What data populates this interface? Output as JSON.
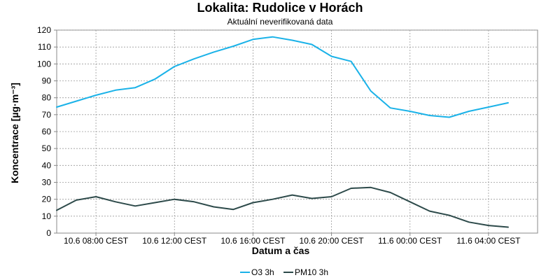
{
  "chart_data": {
    "type": "line",
    "title": "Lokalita: Rudolice v Horách",
    "subtitle": "Aktuální neverifikovaná data",
    "xlabel": "Datum a čas",
    "ylabel": "Koncentrace [µg·m⁻³]",
    "ylim": [
      0,
      120
    ],
    "yticks": [
      0,
      10,
      20,
      30,
      40,
      50,
      60,
      70,
      80,
      90,
      100,
      110,
      120
    ],
    "xlim": [
      "2024-06-10 06:00",
      "2024-06-11 06:30"
    ],
    "xticks": [
      {
        "label": "10.6 08:00 CEST",
        "hour": 8
      },
      {
        "label": "10.6 12:00 CEST",
        "hour": 12
      },
      {
        "label": "10.6 16:00 CEST",
        "hour": 16
      },
      {
        "label": "10.6 20:00 CEST",
        "hour": 20
      },
      {
        "label": "11.6 00:00 CEST",
        "hour": 24
      },
      {
        "label": "11.6 04:00 CEST",
        "hour": 28
      }
    ],
    "grid": true,
    "legend_position": "bottom",
    "x_hours": [
      6,
      7,
      8,
      9,
      10,
      11,
      12,
      13,
      14,
      15,
      16,
      17,
      18,
      19,
      20,
      21,
      22,
      23,
      24,
      25,
      26,
      27,
      28,
      29
    ],
    "series": [
      {
        "name": "O3 3h",
        "color": "#1ab2e8",
        "values": [
          74.5,
          78,
          81.5,
          84.5,
          86,
          91,
          98.5,
          103,
          107,
          110.5,
          114.5,
          116,
          114,
          111.5,
          104.5,
          101.5,
          84,
          74,
          72,
          69.5,
          68.5,
          72,
          74.5,
          77
        ]
      },
      {
        "name": "PM10 3h",
        "color": "#2d4a4a",
        "values": [
          13.5,
          19.5,
          21.5,
          18.5,
          16,
          18,
          20,
          18.5,
          15.5,
          14,
          18,
          20,
          22.5,
          20.5,
          21.5,
          26.5,
          27,
          24,
          18.5,
          13,
          10.5,
          6.5,
          4.5,
          3.5
        ]
      }
    ]
  }
}
